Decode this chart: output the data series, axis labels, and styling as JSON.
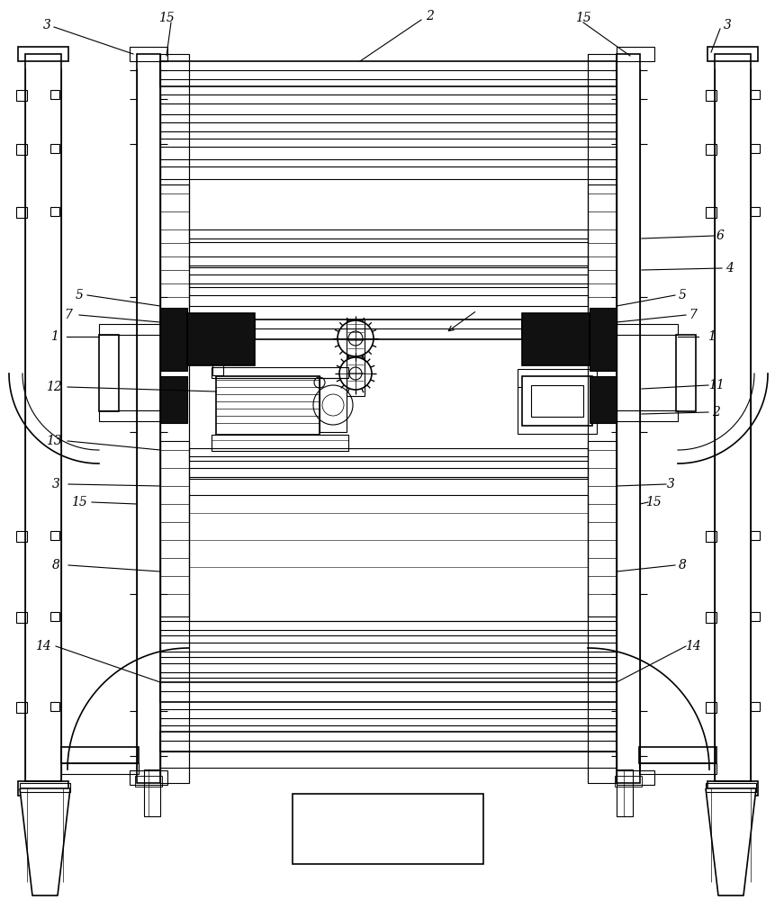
{
  "bg_color": "#ffffff",
  "lc": "#000000",
  "lw": 0.8,
  "lw2": 1.2,
  "lw3": 1.6
}
